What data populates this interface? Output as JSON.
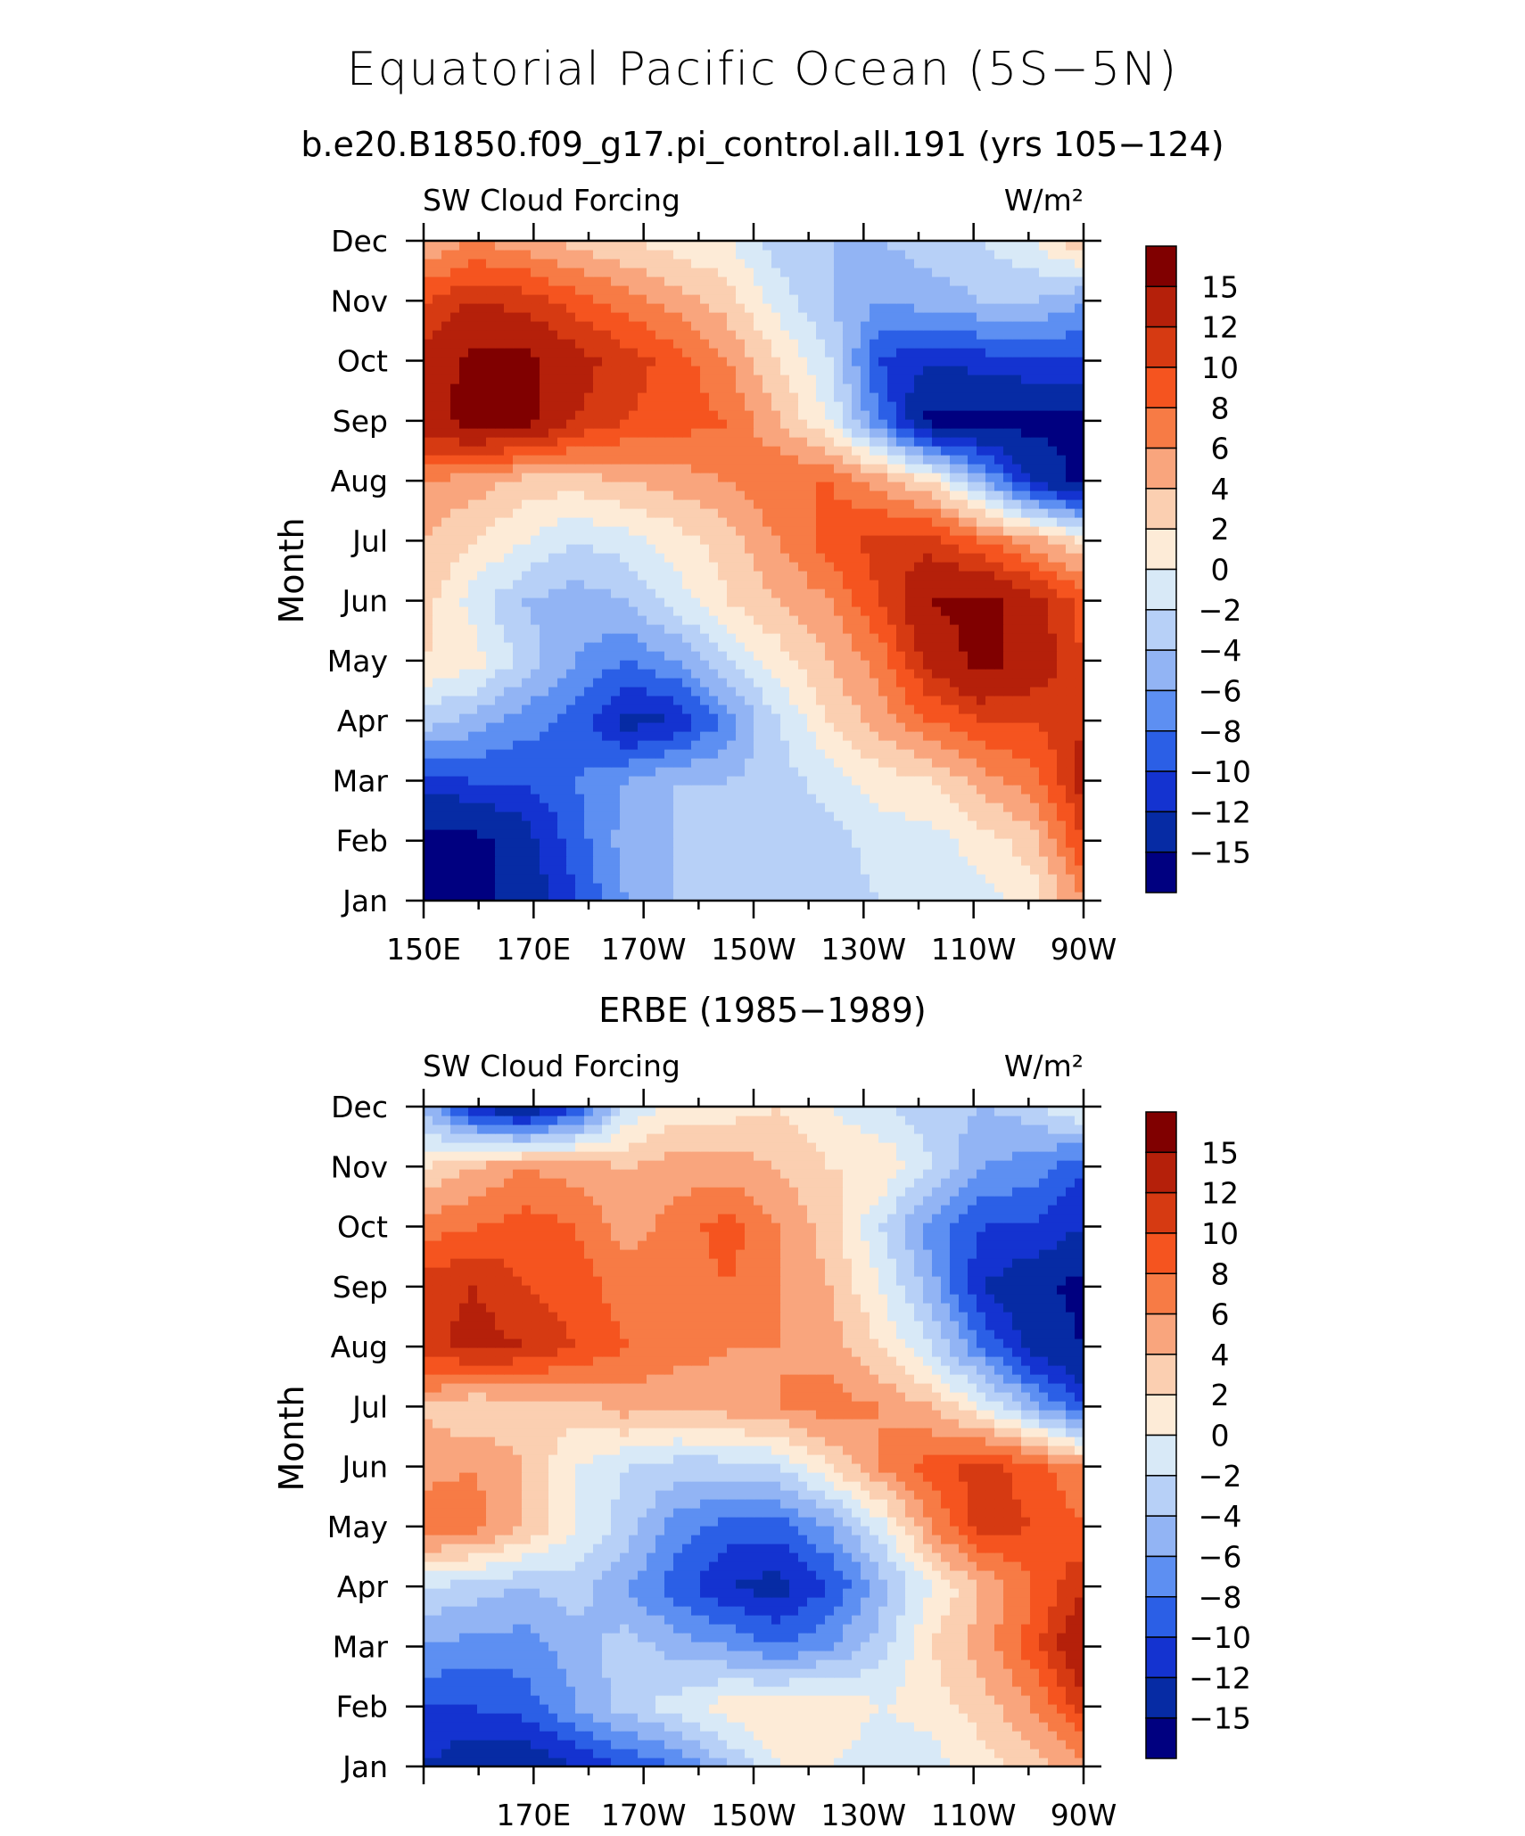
{
  "title": "Equatorial Pacific Ocean (5S−5N)",
  "chart_data": [
    {
      "type": "heatmap",
      "title": "b.e20.B1850.f09_g17.pi_control.all.191 (yrs 105−124)",
      "left_label": "SW Cloud Forcing",
      "right_label": "W/m²",
      "ylabel": "Month",
      "y_categories": [
        "Jan",
        "Feb",
        "Mar",
        "Apr",
        "May",
        "Jun",
        "Jul",
        "Aug",
        "Sep",
        "Oct",
        "Nov",
        "Dec"
      ],
      "x_tick_labels": [
        "150E",
        "170E",
        "170W",
        "150W",
        "130W",
        "110W",
        "90W"
      ],
      "xlim_deg_east": [
        150,
        270
      ],
      "colorbar": {
        "levels": [
          "15",
          "12",
          "10",
          "8",
          "6",
          "4",
          "2",
          "0",
          "−2",
          "−4",
          "−6",
          "−8",
          "−10",
          "−12",
          "−15"
        ],
        "colors": [
          "#800000",
          "#b5200a",
          "#d63a12",
          "#f5541f",
          "#f77b45",
          "#f9a57d",
          "#fbcfb1",
          "#fdebd7",
          "#d8e9f7",
          "#b7d0f7",
          "#92b4f4",
          "#5d8ff2",
          "#2b5fe6",
          "#1433d0",
          "#062ba4",
          "#000080"
        ]
      },
      "contour_values_description": "Field in W/m^2 sampled on month x longitude grid",
      "z": [
        [
          -16,
          -16,
          -14,
          -10,
          -6,
          -4,
          -4,
          -4,
          -3,
          -2,
          -1,
          -1,
          1,
          6
        ],
        [
          -16,
          -16,
          -13,
          -9,
          -5,
          -4,
          -4,
          -4,
          -3,
          -1,
          -1,
          1,
          3,
          10
        ],
        [
          -11,
          -10,
          -10,
          -8,
          -6,
          -4,
          -4,
          -3,
          -1,
          1,
          2,
          5,
          7,
          13
        ],
        [
          -3,
          -5,
          -7,
          -9,
          -13,
          -12,
          -7,
          -2,
          2,
          5,
          8,
          10,
          10,
          12
        ],
        [
          2,
          1,
          -3,
          -6,
          -8,
          -6,
          -2,
          1,
          4,
          7,
          13,
          16,
          14,
          10
        ],
        [
          3,
          -1,
          -4,
          -5,
          -4,
          -1,
          2,
          4,
          6,
          10,
          15,
          16,
          13,
          9
        ],
        [
          4,
          2,
          0,
          -2,
          -1,
          1,
          3,
          6,
          9,
          11,
          11,
          8,
          5,
          2
        ],
        [
          6,
          5,
          3,
          3,
          4,
          5,
          6,
          8,
          8,
          5,
          2,
          -5,
          -12,
          -16
        ],
        [
          14,
          16,
          16,
          12,
          10,
          9,
          8,
          4,
          0,
          -8,
          -16,
          -16,
          -16,
          -16
        ],
        [
          13,
          16,
          16,
          13,
          11,
          9,
          6,
          2,
          -2,
          -10,
          -12,
          -11,
          -10,
          -10
        ],
        [
          10,
          12,
          11,
          9,
          7,
          5,
          3,
          -1,
          -4,
          -6,
          -5,
          -4,
          -4,
          -6
        ],
        [
          4,
          6,
          5,
          3,
          2,
          1,
          0,
          -3,
          -4,
          -4,
          -3,
          -2,
          0,
          4
        ]
      ]
    },
    {
      "type": "heatmap",
      "title": "ERBE (1985−1989)",
      "left_label": "SW Cloud Forcing",
      "right_label": "W/m²",
      "ylabel": "Month",
      "y_categories": [
        "Jan",
        "Feb",
        "Mar",
        "Apr",
        "May",
        "Jun",
        "Jul",
        "Aug",
        "Sep",
        "Oct",
        "Nov",
        "Dec"
      ],
      "x_tick_labels": [
        "170E",
        "170W",
        "150W",
        "130W",
        "110W",
        "90W"
      ],
      "xlim_deg_east": [
        150,
        270
      ],
      "colorbar": {
        "levels": [
          "15",
          "12",
          "10",
          "8",
          "6",
          "4",
          "2",
          "0",
          "−2",
          "−4",
          "−6",
          "−8",
          "−10",
          "−12",
          "−15"
        ],
        "colors": [
          "#800000",
          "#b5200a",
          "#d63a12",
          "#f5541f",
          "#f77b45",
          "#f9a57d",
          "#fbcfb1",
          "#fdebd7",
          "#d8e9f7",
          "#b7d0f7",
          "#92b4f4",
          "#5d8ff2",
          "#2b5fe6",
          "#1433d0",
          "#062ba4",
          "#000080"
        ]
      },
      "z": [
        [
          -12,
          -14,
          -14,
          -12,
          -10,
          -8,
          -4,
          0,
          0,
          -2,
          -1,
          1,
          3,
          5
        ],
        [
          -10,
          -10,
          -9,
          -6,
          -3,
          -1,
          1,
          2,
          2,
          0,
          1,
          3,
          6,
          11
        ],
        [
          -6,
          -7,
          -7,
          -5,
          -3,
          -5,
          -6,
          -8,
          -6,
          -3,
          2,
          5,
          9,
          15
        ],
        [
          -2,
          -3,
          -4,
          -3,
          -6,
          -9,
          -12,
          -13,
          -10,
          -5,
          0,
          4,
          8,
          12
        ],
        [
          8,
          7,
          4,
          0,
          -3,
          -7,
          -9,
          -9,
          -6,
          -1,
          6,
          11,
          10,
          8
        ],
        [
          5,
          6,
          4,
          0,
          -2,
          -3,
          -3,
          -2,
          2,
          6,
          9,
          11,
          9,
          6
        ],
        [
          4,
          2,
          3,
          3,
          5,
          4,
          5,
          6,
          7,
          6,
          4,
          0,
          -5,
          -10
        ],
        [
          11,
          13,
          12,
          10,
          8,
          7,
          6,
          6,
          5,
          2,
          -2,
          -8,
          -13,
          -15
        ],
        [
          11,
          12,
          10,
          9,
          7,
          7,
          8,
          6,
          4,
          0,
          -5,
          -12,
          -14,
          -16
        ],
        [
          7,
          8,
          9,
          8,
          5,
          7,
          9,
          6,
          3,
          -2,
          -7,
          -10,
          -10,
          -12
        ],
        [
          2,
          4,
          6,
          5,
          4,
          5,
          5,
          4,
          2,
          2,
          -2,
          -6,
          -7,
          -10
        ],
        [
          -4,
          -12,
          -15,
          -10,
          -2,
          1,
          1,
          2,
          0,
          -2,
          -3,
          -4,
          -3,
          1
        ]
      ]
    }
  ]
}
